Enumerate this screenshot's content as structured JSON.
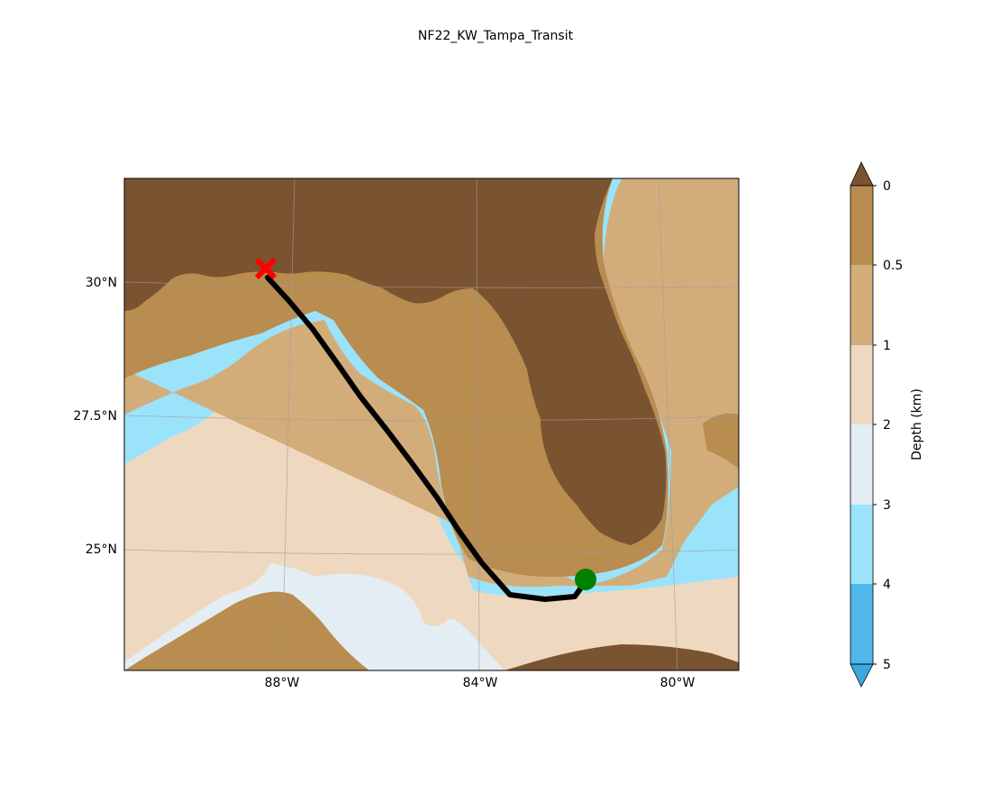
{
  "figure": {
    "title": "NF22_KW_Tampa_Transit"
  },
  "map": {
    "lat_ticks": [
      "30°N",
      "27.5°N",
      "25°N"
    ],
    "lon_ticks": [
      "88°W",
      "84°W",
      "80°W"
    ],
    "markers": {
      "start_icon": "red-x",
      "end_icon": "green-dot"
    },
    "track_color": "#000000"
  },
  "colorbar": {
    "label": "Depth (km)",
    "ticks": [
      "0",
      "0.5",
      "1",
      "2",
      "3",
      "4",
      "5"
    ],
    "colors": {
      "extend_top": "#7a5330",
      "band_0_05": "#b98c4f",
      "band_05_1": "#d2ad7a",
      "band_1_2": "#eed9c0",
      "band_2_3": "#e4edf3",
      "band_3_4": "#9be3fb",
      "band_4_5": "#4fb8e8",
      "extend_bottom": "#3aa8de"
    }
  }
}
